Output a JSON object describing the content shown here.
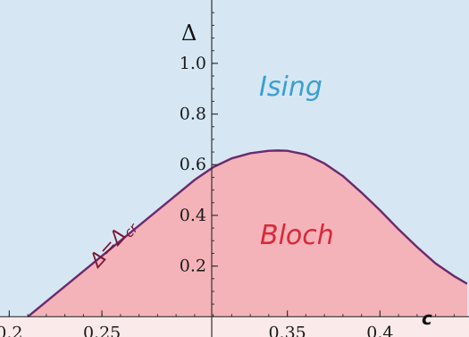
{
  "chart_data": {
    "type": "area",
    "title": "",
    "xlabel": "c",
    "ylabel": "Δ",
    "xlim": [
      0.195,
      0.448
    ],
    "ylim": [
      -0.08,
      1.25
    ],
    "grid": false,
    "x_ticks": [
      0.2,
      0.25,
      0.35,
      0.4
    ],
    "x_tick_labels": [
      "0.2",
      "0.25",
      "0.35",
      "0.4"
    ],
    "y_ticks": [
      0.2,
      0.4,
      0.6,
      0.8,
      1.0
    ],
    "y_tick_labels": [
      "0.2",
      "0.4",
      "0.6",
      "0.8",
      "1.0"
    ],
    "series": [
      {
        "name": "Δ=Δcr",
        "x": [
          0.21,
          0.22,
          0.23,
          0.24,
          0.25,
          0.26,
          0.27,
          0.28,
          0.29,
          0.3,
          0.31,
          0.32,
          0.33,
          0.34,
          0.345,
          0.35,
          0.36,
          0.37,
          0.38,
          0.39,
          0.4,
          0.41,
          0.42,
          0.43,
          0.44,
          0.447
        ],
        "values": [
          0.0,
          0.06,
          0.12,
          0.18,
          0.24,
          0.3,
          0.36,
          0.42,
          0.48,
          0.54,
          0.59,
          0.625,
          0.645,
          0.655,
          0.656,
          0.655,
          0.64,
          0.605,
          0.555,
          0.49,
          0.42,
          0.345,
          0.275,
          0.21,
          0.16,
          0.13
        ]
      }
    ],
    "regions": [
      {
        "label": "Ising",
        "color": "#3a9fd0",
        "fill": "#d6e7f3"
      },
      {
        "label": "Bloch",
        "color": "#d8283a",
        "fill": "#f4b3b8"
      }
    ],
    "curve_label": {
      "main": "Δ=Δ",
      "sub": "cr"
    },
    "colors": {
      "background_top": "#d6e7f3",
      "area_fill": "#f4b3b8",
      "below_axis": "#fbeaea",
      "curve": "#6b2a6e",
      "axis": "#333333"
    }
  }
}
